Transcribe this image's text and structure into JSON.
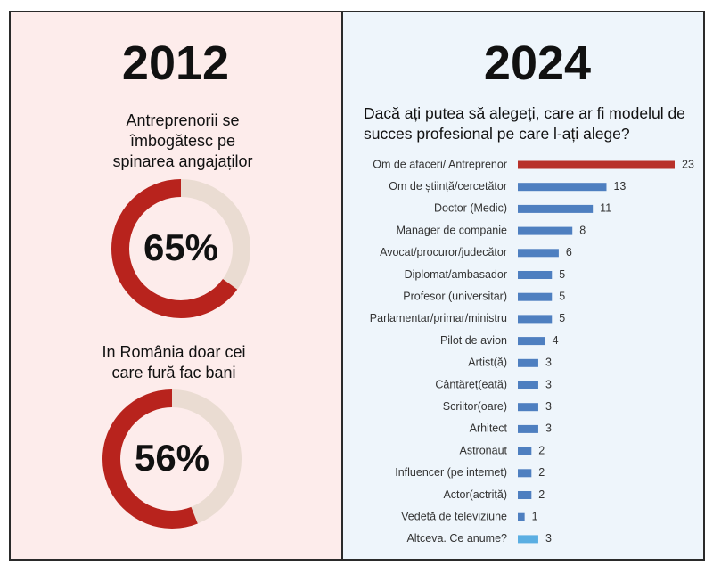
{
  "panels": [
    {
      "heading": "2012"
    },
    {
      "heading": "2024"
    }
  ],
  "chart_data": [
    {
      "type": "donut",
      "title": "Antreprenorii se îmbogătesc pe spinarea angajaților",
      "values": [
        65
      ],
      "value_labels": [
        "65%"
      ],
      "ylim": [
        0,
        100
      ],
      "color": "#b8231d",
      "track_color": "#eadcd2"
    },
    {
      "type": "donut",
      "title": "In România doar cei care fură fac bani",
      "values": [
        56
      ],
      "value_labels": [
        "56%"
      ],
      "ylim": [
        0,
        100
      ],
      "color": "#b8231d",
      "track_color": "#eadcd2"
    },
    {
      "type": "bar",
      "orientation": "horizontal",
      "title": "Dacă ați putea să alegeți, care ar fi modelul de succes profesional pe care l-ați alege?",
      "categories": [
        "Om de afaceri/ Antreprenor",
        "Om de știință/cercetător",
        "Doctor (Medic)",
        "Manager de companie",
        "Avocat/procuror/judecător",
        "Diplomat/ambasador",
        "Profesor (universitar)",
        "Parlamentar/primar/ministru",
        "Pilot de avion",
        "Artist(ă)",
        "Cântăreț(eață)",
        "Scriitor(oare)",
        "Arhitect",
        "Astronaut",
        "Influencer (pe internet)",
        "Actor(actriță)",
        "Vedetă de televiziune",
        "Altceva. Ce anume?"
      ],
      "values": [
        23,
        13,
        11,
        8,
        6,
        5,
        5,
        5,
        4,
        3,
        3,
        3,
        3,
        2,
        2,
        2,
        1,
        3
      ],
      "colors": [
        "#b8312a",
        "#4e7fc0",
        "#4e7fc0",
        "#4e7fc0",
        "#4e7fc0",
        "#4e7fc0",
        "#4e7fc0",
        "#4e7fc0",
        "#4e7fc0",
        "#4e7fc0",
        "#4e7fc0",
        "#4e7fc0",
        "#4e7fc0",
        "#4e7fc0",
        "#4e7fc0",
        "#4e7fc0",
        "#4e7fc0",
        "#5aaee2"
      ],
      "xlim": [
        0,
        23
      ]
    }
  ]
}
